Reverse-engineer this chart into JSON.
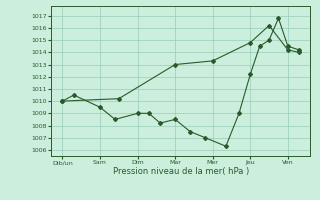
{
  "xlabel": "Pression niveau de la mer( hPa )",
  "background_color": "#cceedd",
  "grid_color": "#99ccbb",
  "line_color": "#2a5a2a",
  "x_tick_labels": [
    "Dib/un",
    "Sam",
    "Dim",
    "Mar",
    "Mer",
    "Jeu",
    "Ven"
  ],
  "ylim": [
    1005.5,
    1017.8
  ],
  "yticks": [
    1006,
    1007,
    1008,
    1009,
    1010,
    1011,
    1012,
    1013,
    1014,
    1015,
    1016,
    1017
  ],
  "series1_x": [
    0.0,
    0.3,
    1.0,
    1.4,
    2.0,
    2.3,
    2.6,
    3.0,
    3.4,
    3.8,
    4.35,
    4.7,
    5.0,
    5.25,
    5.5,
    5.75,
    6.0,
    6.3
  ],
  "series1_y": [
    1010.0,
    1010.5,
    1009.5,
    1008.5,
    1009.0,
    1009.0,
    1008.2,
    1008.5,
    1007.5,
    1007.0,
    1006.3,
    1009.0,
    1012.2,
    1014.5,
    1015.0,
    1016.8,
    1014.5,
    1014.2
  ],
  "series2_x": [
    0.0,
    1.5,
    3.0,
    4.0,
    5.0,
    5.5,
    6.0,
    6.3
  ],
  "series2_y": [
    1010.0,
    1010.2,
    1013.0,
    1013.3,
    1014.8,
    1016.2,
    1014.2,
    1014.0
  ],
  "xlim": [
    -0.3,
    6.6
  ]
}
